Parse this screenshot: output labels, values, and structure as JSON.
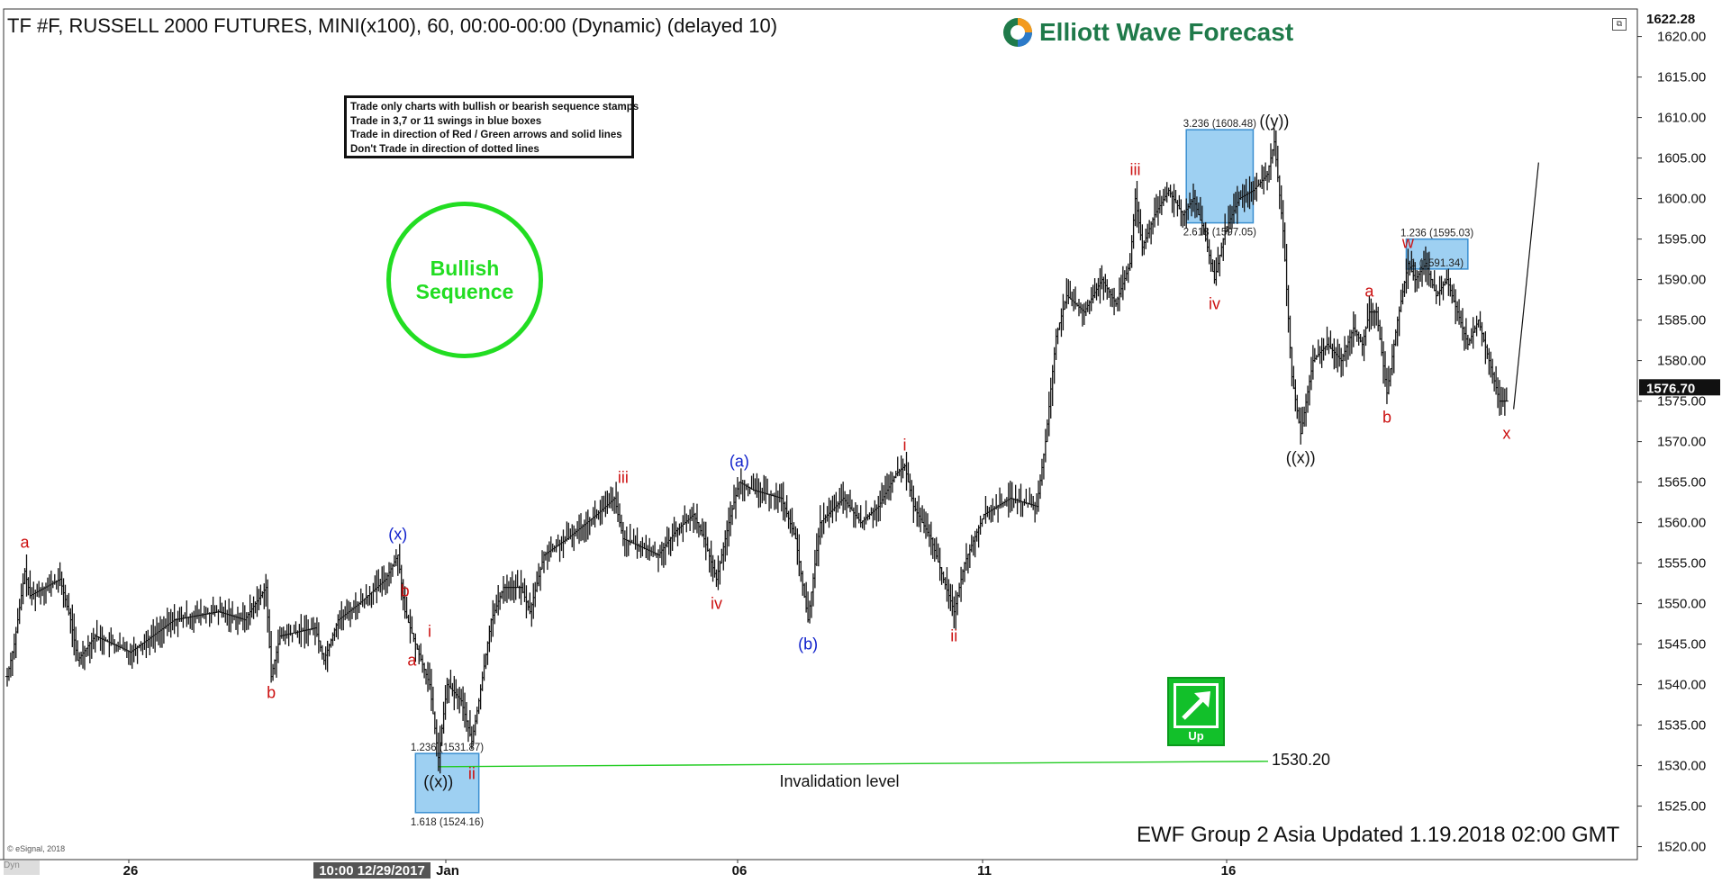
{
  "header": {
    "title": "TF #F, RUSSELL 2000 FUTURES, MINI(x100), 60, 00:00-00:00 (Dynamic) (delayed 10)",
    "logo_text": "Elliott Wave Forecast"
  },
  "rules_box": {
    "lines": [
      "Trade only charts with bullish or bearish sequence stamps",
      "Trade in 3,7 or 11 swings in blue boxes",
      "Trade in direction of Red / Green arrows and solid lines",
      "Don't Trade in direction of dotted lines"
    ]
  },
  "stamp": {
    "line1": "Bullish",
    "line2": "Sequence",
    "color": "#22dd22"
  },
  "up_box": {
    "label": "Up",
    "color": "#12c02a"
  },
  "footer": {
    "updated": "EWF Group 2 Asia Updated 1.19.2018 02:00 GMT",
    "copyright": "© eSignal, 2018",
    "dyn_label": "Dyn"
  },
  "colors": {
    "wave_red": "#cc1111",
    "wave_blue": "#1122cc",
    "wave_black": "#111111",
    "box_fill": "#9ed0f2",
    "box_border": "#3a8fd0",
    "invalidation_line": "#22cc22"
  },
  "chart_data": {
    "type": "bar",
    "subtype": "ohlc-price-chart",
    "symbol": "TF #F",
    "ylim": [
      1517,
      1623
    ],
    "y_ticks": [
      1520,
      1525,
      1530,
      1535,
      1540,
      1545,
      1550,
      1555,
      1560,
      1565,
      1570,
      1575,
      1580,
      1585,
      1590,
      1595,
      1600,
      1605,
      1610,
      1615,
      1620
    ],
    "y_tick_labels": [
      "1520.00",
      "1525.00",
      "1530.00",
      "1535.00",
      "1540.00",
      "1545.00",
      "1550.00",
      "1555.00",
      "1560.00",
      "1565.00",
      "1570.00",
      "1575.00",
      "1580.00",
      "1585.00",
      "1590.00",
      "1595.00",
      "1600.00",
      "1605.00",
      "1610.00",
      "1615.00",
      "1620.00"
    ],
    "x_labels": [
      "26",
      "Jan",
      "06",
      "11",
      "16"
    ],
    "x_highlight_label": "10:00 12/29/2017",
    "last_price_label": "1576.70",
    "last_price": 1576.7,
    "top_price_label": "1622.28",
    "top_price": 1622.28,
    "price_path": [
      [
        0,
        1541
      ],
      [
        4,
        1545
      ],
      [
        10,
        1554
      ],
      [
        13,
        1551
      ],
      [
        30,
        1553
      ],
      [
        36,
        1548
      ],
      [
        40,
        1543
      ],
      [
        50,
        1546
      ],
      [
        70,
        1544
      ],
      [
        95,
        1548
      ],
      [
        120,
        1549
      ],
      [
        135,
        1548
      ],
      [
        147,
        1552
      ],
      [
        150,
        1541
      ],
      [
        155,
        1546
      ],
      [
        175,
        1547
      ],
      [
        180,
        1543
      ],
      [
        188,
        1548
      ],
      [
        200,
        1550
      ],
      [
        215,
        1553
      ],
      [
        222,
        1556
      ],
      [
        226,
        1549
      ],
      [
        232,
        1545
      ],
      [
        240,
        1540
      ],
      [
        245,
        1531
      ],
      [
        250,
        1540
      ],
      [
        258,
        1538
      ],
      [
        264,
        1533
      ],
      [
        268,
        1538
      ],
      [
        275,
        1548
      ],
      [
        282,
        1552
      ],
      [
        292,
        1552
      ],
      [
        297,
        1549
      ],
      [
        305,
        1556
      ],
      [
        318,
        1558
      ],
      [
        335,
        1561
      ],
      [
        345,
        1563
      ],
      [
        350,
        1558
      ],
      [
        360,
        1557
      ],
      [
        370,
        1556
      ],
      [
        380,
        1559
      ],
      [
        390,
        1561
      ],
      [
        396,
        1558
      ],
      [
        403,
        1553
      ],
      [
        410,
        1560
      ],
      [
        416,
        1565
      ],
      [
        424,
        1564
      ],
      [
        440,
        1563
      ],
      [
        448,
        1558
      ],
      [
        455,
        1548
      ],
      [
        462,
        1560
      ],
      [
        475,
        1563
      ],
      [
        485,
        1560
      ],
      [
        495,
        1562
      ],
      [
        505,
        1566
      ],
      [
        510,
        1567
      ],
      [
        515,
        1562
      ],
      [
        525,
        1558
      ],
      [
        532,
        1553
      ],
      [
        538,
        1549
      ],
      [
        544,
        1555
      ],
      [
        555,
        1561
      ],
      [
        570,
        1563
      ],
      [
        585,
        1562
      ],
      [
        590,
        1570
      ],
      [
        596,
        1583
      ],
      [
        602,
        1588
      ],
      [
        612,
        1586
      ],
      [
        622,
        1590
      ],
      [
        630,
        1587
      ],
      [
        638,
        1592
      ],
      [
        641,
        1600
      ],
      [
        645,
        1594
      ],
      [
        652,
        1598
      ],
      [
        660,
        1601
      ],
      [
        668,
        1598
      ],
      [
        674,
        1600
      ],
      [
        680,
        1596
      ],
      [
        686,
        1590
      ],
      [
        692,
        1596
      ],
      [
        700,
        1600
      ],
      [
        708,
        1601
      ],
      [
        716,
        1603
      ],
      [
        720,
        1607
      ],
      [
        725,
        1596
      ],
      [
        730,
        1578
      ],
      [
        735,
        1571
      ],
      [
        742,
        1580
      ],
      [
        750,
        1582
      ],
      [
        758,
        1580
      ],
      [
        765,
        1584
      ],
      [
        770,
        1582
      ],
      [
        774,
        1586
      ],
      [
        778,
        1586
      ],
      [
        784,
        1576
      ],
      [
        790,
        1585
      ],
      [
        796,
        1592
      ],
      [
        800,
        1590
      ],
      [
        806,
        1592
      ],
      [
        812,
        1588
      ],
      [
        818,
        1590
      ],
      [
        824,
        1586
      ],
      [
        830,
        1582
      ],
      [
        836,
        1585
      ],
      [
        842,
        1580
      ],
      [
        848,
        1575
      ],
      [
        852,
        1575
      ]
    ],
    "projection": [
      [
        856,
        1574
      ],
      [
        862,
        1600
      ]
    ],
    "boxes": [
      {
        "name": "box-wave-x-bottom",
        "y_top": 1531.5,
        "y_bottom": 1524.2,
        "x_start": 232,
        "x_end": 268,
        "label_top": "1.236 (1531.87)",
        "label_bottom": "1.618 (1524.16)"
      },
      {
        "name": "box-wave-y-top",
        "y_top": 1608.5,
        "y_bottom": 1597.0,
        "x_start": 670,
        "x_end": 708,
        "label_top": "3.236 (1608.48)",
        "label_bottom": "2.618 (1597.05)"
      },
      {
        "name": "box-wave-w",
        "y_top": 1595.0,
        "y_bottom": 1591.3,
        "x_start": 795,
        "x_end": 830,
        "label_top": "1.236 (1595.03)",
        "label_bottom": "1 (1591.34)"
      }
    ],
    "invalidation": {
      "value": 1530.2,
      "label": "1530.20",
      "caption": "Invalidation level"
    },
    "wave_labels": [
      {
        "text": "a",
        "x": 10,
        "y": 1556,
        "color": "red",
        "pos": "above"
      },
      {
        "text": "b",
        "x": 150,
        "y": 1541,
        "color": "red",
        "pos": "below"
      },
      {
        "text": "(x)",
        "x": 222,
        "y": 1557,
        "color": "blue",
        "pos": "above"
      },
      {
        "text": "b",
        "x": 226,
        "y": 1550,
        "color": "red",
        "pos": "above"
      },
      {
        "text": "a",
        "x": 230,
        "y": 1545,
        "color": "red",
        "pos": "below"
      },
      {
        "text": "i",
        "x": 240,
        "y": 1545,
        "color": "red",
        "pos": "above"
      },
      {
        "text": "((x))",
        "x": 245,
        "y": 1530,
        "color": "black",
        "pos": "below"
      },
      {
        "text": "ii",
        "x": 264,
        "y": 1531,
        "color": "red",
        "pos": "below"
      },
      {
        "text": "iii",
        "x": 350,
        "y": 1564,
        "color": "red",
        "pos": "above"
      },
      {
        "text": "iv",
        "x": 403,
        "y": 1552,
        "color": "red",
        "pos": "below"
      },
      {
        "text": "(a)",
        "x": 416,
        "y": 1566,
        "color": "blue",
        "pos": "above"
      },
      {
        "text": "(b)",
        "x": 455,
        "y": 1547,
        "color": "blue",
        "pos": "below"
      },
      {
        "text": "i",
        "x": 510,
        "y": 1568,
        "color": "red",
        "pos": "above"
      },
      {
        "text": "ii",
        "x": 538,
        "y": 1548,
        "color": "red",
        "pos": "below"
      },
      {
        "text": "iii",
        "x": 641,
        "y": 1602,
        "color": "red",
        "pos": "above"
      },
      {
        "text": "iv",
        "x": 686,
        "y": 1589,
        "color": "red",
        "pos": "below"
      },
      {
        "text": "((y))",
        "x": 720,
        "y": 1608,
        "color": "black",
        "pos": "above"
      },
      {
        "text": "((x))",
        "x": 735,
        "y": 1570,
        "color": "black",
        "pos": "below"
      },
      {
        "text": "a",
        "x": 774,
        "y": 1587,
        "color": "red",
        "pos": "above"
      },
      {
        "text": "b",
        "x": 784,
        "y": 1575,
        "color": "red",
        "pos": "below"
      },
      {
        "text": "w",
        "x": 796,
        "y": 1593,
        "color": "red",
        "pos": "above"
      },
      {
        "text": "x",
        "x": 852,
        "y": 1573,
        "color": "red",
        "pos": "below"
      }
    ]
  }
}
